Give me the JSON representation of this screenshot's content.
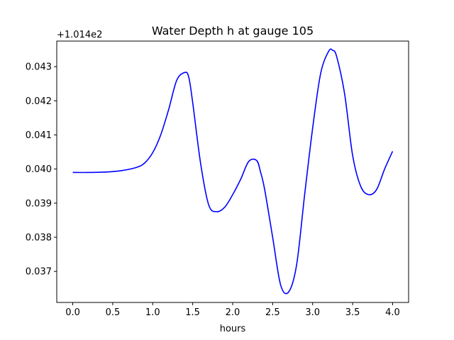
{
  "chart_data": {
    "type": "line",
    "title": "Water Depth h at gauge 105",
    "xlabel": "hours",
    "ylabel": "",
    "offset_text": "+1.014e2",
    "y_offset": 101.4,
    "xlim": [
      -0.2,
      4.2
    ],
    "ylim": [
      0.03609,
      0.04375
    ],
    "grid": false,
    "x_ticks": [
      0.0,
      0.5,
      1.0,
      1.5,
      2.0,
      2.5,
      3.0,
      3.5,
      4.0
    ],
    "x_tick_labels": [
      "0.0",
      "0.5",
      "1.0",
      "1.5",
      "2.0",
      "2.5",
      "3.0",
      "3.5",
      "4.0"
    ],
    "y_ticks": [
      0.037,
      0.038,
      0.039,
      0.04,
      0.041,
      0.042,
      0.043
    ],
    "y_tick_labels": [
      "0.037",
      "0.038",
      "0.039",
      "0.040",
      "0.041",
      "0.042",
      "0.043"
    ],
    "series": [
      {
        "color": "#0000ff",
        "x": [
          0.0,
          0.2,
          0.4,
          0.6,
          0.8,
          0.9,
          1.0,
          1.1,
          1.2,
          1.3,
          1.4,
          1.45,
          1.5,
          1.6,
          1.7,
          1.8,
          1.9,
          2.0,
          2.1,
          2.2,
          2.3,
          2.35,
          2.4,
          2.5,
          2.6,
          2.7,
          2.8,
          2.9,
          3.0,
          3.1,
          3.2,
          3.25,
          3.3,
          3.4,
          3.5,
          3.6,
          3.7,
          3.8,
          3.9,
          4.0
        ],
        "y": [
          0.0399,
          0.0399,
          0.03991,
          0.03995,
          0.04005,
          0.04018,
          0.04048,
          0.041,
          0.04175,
          0.0426,
          0.04283,
          0.0427,
          0.04195,
          0.04015,
          0.03895,
          0.03875,
          0.03888,
          0.03925,
          0.0397,
          0.04022,
          0.04025,
          0.0399,
          0.0394,
          0.038,
          0.0366,
          0.0364,
          0.0372,
          0.03925,
          0.0412,
          0.0428,
          0.04345,
          0.04348,
          0.0433,
          0.0422,
          0.0404,
          0.0395,
          0.03925,
          0.0394,
          0.04,
          0.04052
        ]
      }
    ]
  }
}
